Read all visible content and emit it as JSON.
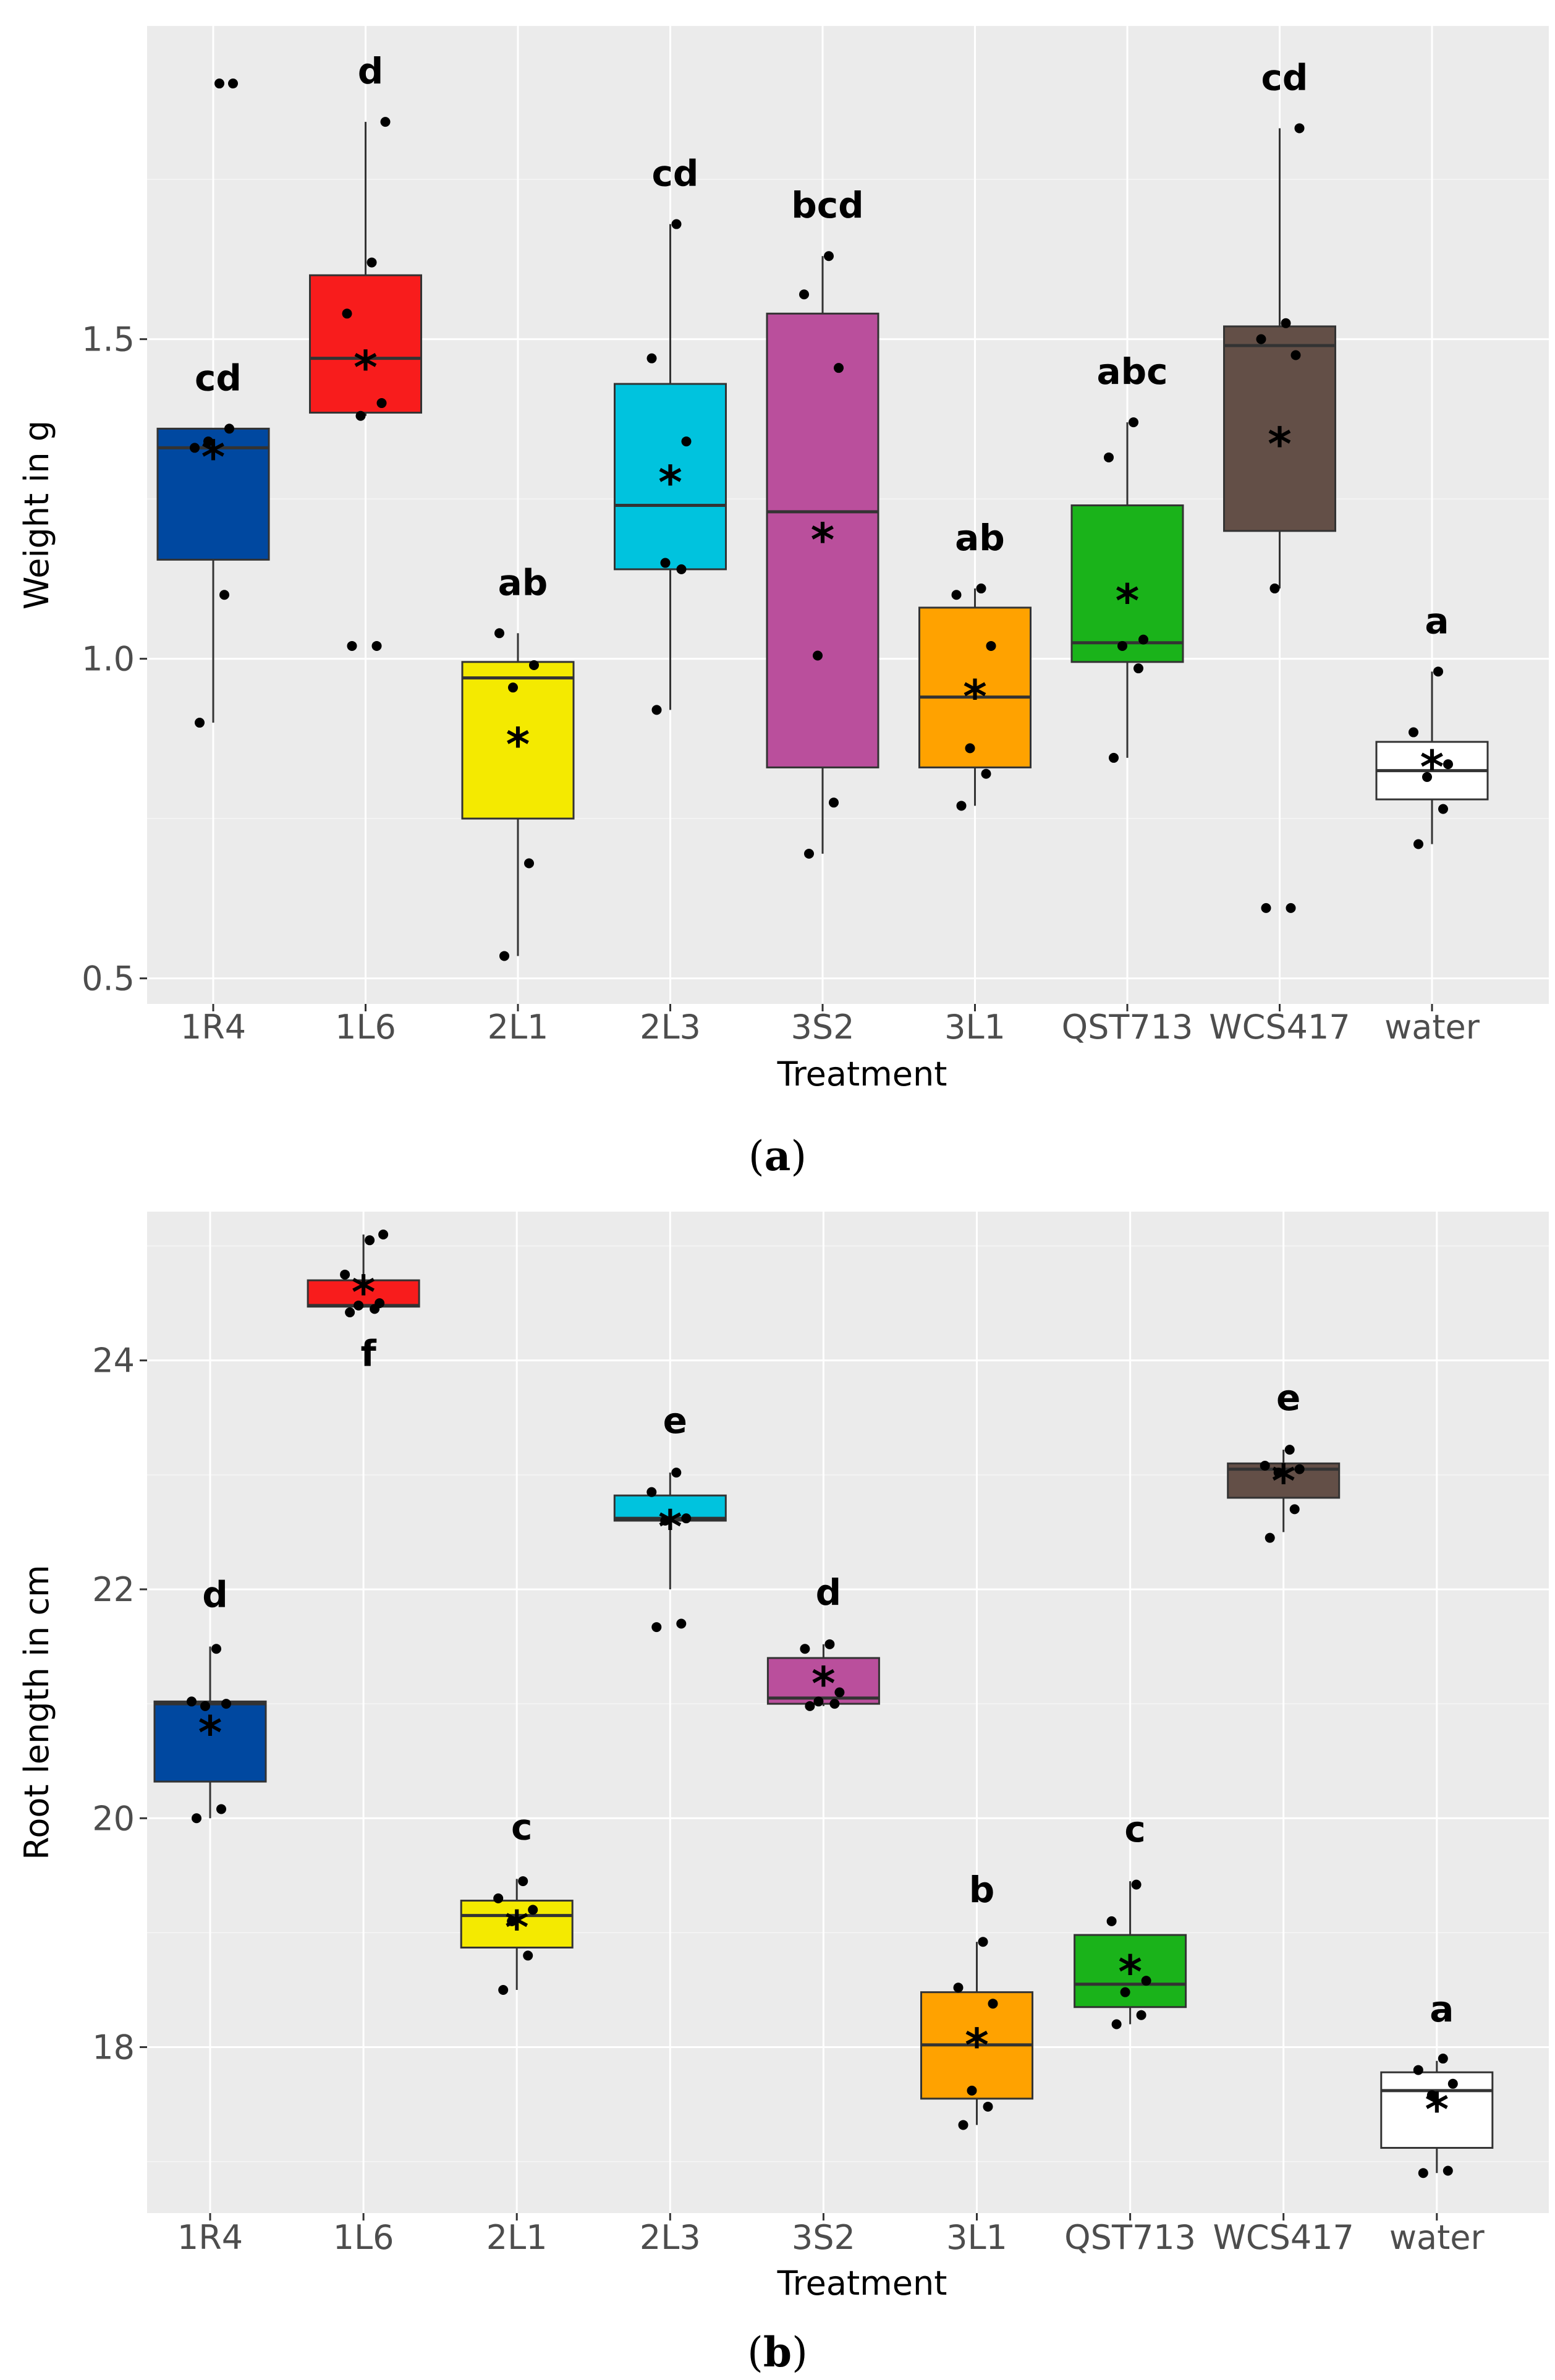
{
  "chart_data": [
    {
      "id": "a",
      "type": "box",
      "caption": "a",
      "xlabel": "Treatment",
      "ylabel": "Weight in g",
      "ylim": [
        0.46,
        1.99
      ],
      "yticks": [
        0.5,
        1.0,
        1.5
      ],
      "ytick_labels": [
        "0.5",
        "1.0",
        "1.5"
      ],
      "grid": true,
      "categories": [
        "1R4",
        "1L6",
        "2L1",
        "2L3",
        "3S2",
        "3L1",
        "QST713",
        "WCS417",
        "water"
      ],
      "colors": [
        "#0048a0",
        "#f81c1c",
        "#f4ea00",
        "#00c3de",
        "#ba4f9c",
        "#ffa200",
        "#1ab31a",
        "#634f47",
        "#ffffff"
      ],
      "boxes": [
        {
          "q1": 1.155,
          "median": 1.33,
          "q3": 1.36,
          "whisker_low": 0.9,
          "whisker_high": 1.36,
          "mean": 1.32,
          "letters": "cd",
          "points": [
            0.9,
            1.1,
            1.34,
            1.36,
            1.33,
            1.9,
            1.9
          ]
        },
        {
          "q1": 1.385,
          "median": 1.47,
          "q3": 1.6,
          "whisker_low": 1.38,
          "whisker_high": 1.84,
          "mean": 1.46,
          "letters": "d",
          "points": [
            1.02,
            1.02,
            1.38,
            1.4,
            1.54,
            1.62,
            1.84
          ]
        },
        {
          "q1": 0.75,
          "median": 0.97,
          "q3": 0.995,
          "whisker_low": 0.535,
          "whisker_high": 1.04,
          "mean": 0.87,
          "letters": "ab",
          "points": [
            0.535,
            0.68,
            0.955,
            0.99,
            1.04
          ]
        },
        {
          "q1": 1.14,
          "median": 1.24,
          "q3": 1.43,
          "whisker_low": 0.92,
          "whisker_high": 1.68,
          "mean": 1.28,
          "letters": "cd",
          "points": [
            0.92,
            1.14,
            1.15,
            1.34,
            1.47,
            1.68
          ]
        },
        {
          "q1": 0.83,
          "median": 1.23,
          "q3": 1.54,
          "whisker_low": 0.695,
          "whisker_high": 1.63,
          "mean": 1.19,
          "letters": "bcd",
          "points": [
            0.695,
            0.775,
            1.005,
            1.455,
            1.57,
            1.63
          ]
        },
        {
          "q1": 0.83,
          "median": 0.94,
          "q3": 1.08,
          "whisker_low": 0.77,
          "whisker_high": 1.11,
          "mean": 0.945,
          "letters": "ab",
          "points": [
            0.77,
            0.82,
            0.86,
            1.02,
            1.1,
            1.11
          ]
        },
        {
          "q1": 0.995,
          "median": 1.025,
          "q3": 1.24,
          "whisker_low": 0.845,
          "whisker_high": 1.37,
          "mean": 1.095,
          "letters": "abc",
          "points": [
            0.845,
            0.985,
            1.02,
            1.03,
            1.315,
            1.37
          ]
        },
        {
          "q1": 1.2,
          "median": 1.49,
          "q3": 1.52,
          "whisker_low": 1.11,
          "whisker_high": 1.83,
          "mean": 1.34,
          "letters": "cd",
          "points": [
            0.61,
            0.61,
            1.11,
            1.475,
            1.5,
            1.525,
            1.83
          ]
        },
        {
          "q1": 0.78,
          "median": 0.825,
          "q3": 0.87,
          "whisker_low": 0.71,
          "whisker_high": 0.98,
          "mean": 0.835,
          "letters": "a",
          "points": [
            0.71,
            0.765,
            0.815,
            0.835,
            0.885,
            0.98
          ]
        }
      ]
    },
    {
      "id": "b",
      "type": "box",
      "caption": "b",
      "xlabel": "Treatment",
      "ylabel": "Root length in cm",
      "ylim": [
        16.55,
        25.3
      ],
      "yticks": [
        18,
        20,
        22,
        24
      ],
      "ytick_labels": [
        "18",
        "20",
        "22",
        "24"
      ],
      "grid": true,
      "categories": [
        "1R4",
        "1L6",
        "2L1",
        "2L3",
        "3S2",
        "3L1",
        "QST713",
        "WCS417",
        "water"
      ],
      "colors": [
        "#0048a0",
        "#f81c1c",
        "#f4ea00",
        "#00c3de",
        "#ba4f9c",
        "#ffa200",
        "#1ab31a",
        "#634f47",
        "#ffffff"
      ],
      "boxes": [
        {
          "q1": 20.32,
          "median": 21.0,
          "q3": 21.02,
          "whisker_low": 20.0,
          "whisker_high": 21.5,
          "mean": 20.77,
          "letters": "d",
          "points": [
            20.0,
            20.08,
            20.98,
            21.0,
            21.02,
            21.48
          ]
        },
        {
          "q1": 24.47,
          "median": 24.48,
          "q3": 24.7,
          "whisker_low": 24.46,
          "whisker_high": 25.1,
          "mean": 24.62,
          "letters": "f",
          "points": [
            24.42,
            24.45,
            24.48,
            24.5,
            24.75,
            25.05,
            25.1
          ]
        },
        {
          "q1": 18.87,
          "median": 19.15,
          "q3": 19.28,
          "whisker_low": 18.5,
          "whisker_high": 19.47,
          "mean": 19.07,
          "letters": "c",
          "points": [
            18.5,
            18.8,
            19.1,
            19.2,
            19.3,
            19.45
          ]
        },
        {
          "q1": 22.6,
          "median": 22.62,
          "q3": 22.82,
          "whisker_low": 22.0,
          "whisker_high": 23.02,
          "mean": 22.57,
          "letters": "e",
          "points": [
            21.67,
            21.7,
            22.6,
            22.62,
            22.85,
            23.02
          ]
        },
        {
          "q1": 21.0,
          "median": 21.05,
          "q3": 21.4,
          "whisker_low": 20.98,
          "whisker_high": 21.52,
          "mean": 21.2,
          "letters": "d",
          "points": [
            20.98,
            21.0,
            21.02,
            21.1,
            21.48,
            21.52
          ]
        },
        {
          "q1": 17.55,
          "median": 18.02,
          "q3": 18.48,
          "whisker_low": 17.32,
          "whisker_high": 18.92,
          "mean": 18.04,
          "letters": "b",
          "points": [
            17.32,
            17.48,
            17.62,
            18.38,
            18.52,
            18.92
          ]
        },
        {
          "q1": 18.35,
          "median": 18.55,
          "q3": 18.98,
          "whisker_low": 18.2,
          "whisker_high": 19.45,
          "mean": 18.68,
          "letters": "c",
          "points": [
            18.2,
            18.28,
            18.48,
            18.58,
            19.1,
            19.42
          ]
        },
        {
          "q1": 22.8,
          "median": 23.05,
          "q3": 23.1,
          "whisker_low": 22.5,
          "whisker_high": 23.22,
          "mean": 22.97,
          "letters": "e",
          "points": [
            22.45,
            22.7,
            23.02,
            23.05,
            23.08,
            23.22
          ]
        },
        {
          "q1": 17.12,
          "median": 17.62,
          "q3": 17.78,
          "whisker_low": 16.9,
          "whisker_high": 17.88,
          "mean": 17.48,
          "letters": "a",
          "points": [
            16.9,
            16.92,
            17.58,
            17.68,
            17.8,
            17.9
          ]
        }
      ]
    }
  ]
}
